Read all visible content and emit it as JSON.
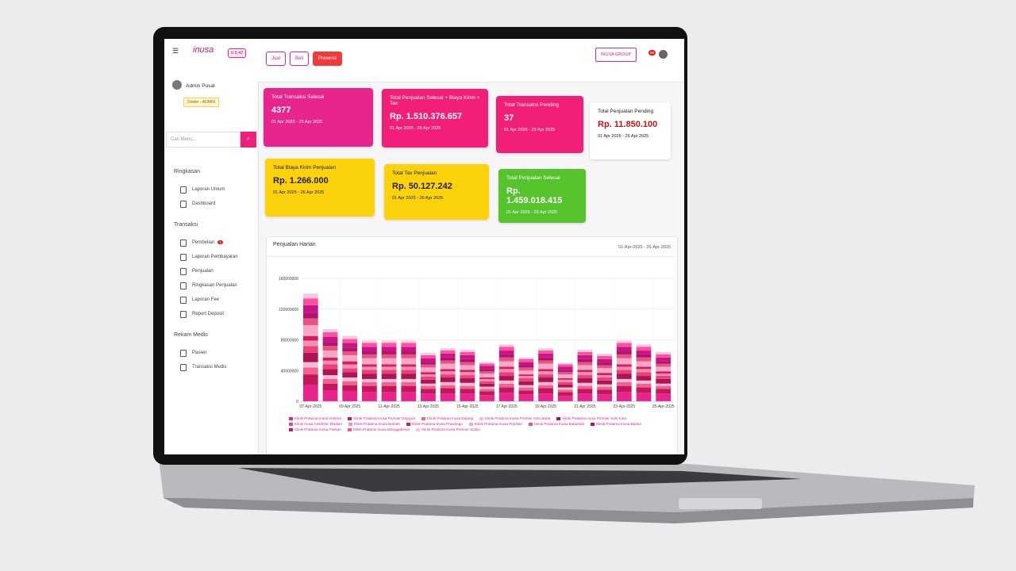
{
  "header": {
    "logo": "inusa",
    "version": "0.8.42",
    "buttons": [
      "Jual",
      "Beli",
      "Presensi"
    ],
    "brand": "INUSA GROUP",
    "notification": "99"
  },
  "sidebar": {
    "user": "Admin Pusat",
    "role": "Dokter - ADMIN",
    "search": "Cari Menu...",
    "sections": [
      {
        "title": "Ringkasan",
        "items": [
          {
            "label": "Laporan Umum"
          },
          {
            "label": "Dashboard"
          }
        ]
      },
      {
        "title": "Transaksi",
        "items": [
          {
            "label": "Pembelian",
            "badge": "1"
          },
          {
            "label": "Laporan Pembayaran"
          },
          {
            "label": "Penjualan"
          },
          {
            "label": "Ringkasan Penjualan"
          },
          {
            "label": "Laporan Fee"
          },
          {
            "label": "Report Deposit"
          }
        ]
      },
      {
        "title": "Rekam Medis",
        "items": [
          {
            "label": "Pasien"
          },
          {
            "label": "Transaksi Medis"
          }
        ]
      }
    ]
  },
  "cards": [
    {
      "title": "Total Transaksi Selesai",
      "value": "4377",
      "period": "01 Apr 2025 - 25 Apr 2025",
      "color": "#e8248f"
    },
    {
      "title": "Total Penjualan Selesai + Biaya Kirim + Tax",
      "value": "Rp. 1.510.376.657",
      "period": "01 Apr 2025 - 26 Apr 2025",
      "color": "#f21f78"
    },
    {
      "title": "Total Transaksi Pending",
      "value": "37",
      "period": "01 Apr 2025 - 25 Apr 2025",
      "color": "#f21f78"
    },
    {
      "title": "Total Penjualan Pending",
      "value": "Rp. 11.850.100",
      "period": "01 Apr 2025 - 26 Apr 2025",
      "color": "#ffffff"
    },
    {
      "title": "Total Biaya Kirim Penjualan",
      "value": "Rp. 1.266.000",
      "period": "01 Apr 2025 - 26 Apr 2025",
      "color": "#fbd20c"
    },
    {
      "title": "Total Tax Penjualan",
      "value": "Rp. 50.127.242",
      "period": "01 Apr 2025 - 26 Apr 2025",
      "color": "#fbd20c"
    },
    {
      "title": "Total Penjualan Selesai",
      "value": "Rp. 1.459.018.415",
      "period": "01 Apr 2025 - 26 Apr 2025",
      "color": "#56c22c"
    }
  ],
  "chart_data": {
    "type": "stacked_bar",
    "title": "Penjualan Harian",
    "subtitle": "01-Apr-2025 - 26-Apr-2025",
    "categories": [
      "07-Apr-2025",
      null,
      "09 Apr 2025",
      null,
      "11-Apr-2025",
      null,
      "13 Apr 2025",
      null,
      "15-Apr-2025",
      null,
      "17 Apr 2025",
      null,
      "19 Apr 2025",
      null,
      "21 Apr 2025",
      null,
      "23-Apr-2025",
      null,
      "25-Apr-2025"
    ],
    "ylim": [
      0,
      160000000
    ],
    "yticks": [
      0,
      40000000,
      80000000,
      120000000,
      160000000
    ],
    "grid": true,
    "series": [
      {
        "name": "Klinik Pratama Inusa Veteran",
        "color": "#e8248f",
        "values": [
          21000000,
          14000000,
          13000000,
          12000000,
          12000000,
          12000000,
          10000000,
          10000000,
          10000000,
          8000000,
          11000000,
          9000000,
          10000000,
          7000000,
          10000000,
          9000000,
          12000000,
          11000000,
          10000000
        ]
      },
      {
        "name": "Klinik Pratama Inusa Premier Gejayan",
        "color": "#c2185b",
        "values": [
          14000000,
          9000000,
          8000000,
          8000000,
          8000000,
          8000000,
          6000000,
          7000000,
          6000000,
          5000000,
          7000000,
          5000000,
          7000000,
          5000000,
          6000000,
          6000000,
          8000000,
          7000000,
          6000000
        ]
      },
      {
        "name": "Klinik Pratama Inusa Dalang",
        "color": "#f06292",
        "values": [
          9000000,
          6000000,
          5000000,
          5000000,
          5000000,
          5000000,
          4000000,
          4000000,
          4000000,
          3000000,
          5000000,
          4000000,
          4000000,
          3000000,
          4000000,
          4000000,
          5000000,
          5000000,
          4000000
        ]
      },
      {
        "name": "Klinik Pratama Inusa Premier Solo Barat",
        "color": "#f8bbd0",
        "values": [
          7000000,
          5000000,
          5000000,
          4000000,
          4000000,
          4000000,
          3000000,
          4000000,
          4000000,
          3000000,
          4000000,
          3000000,
          4000000,
          3000000,
          4000000,
          3000000,
          4000000,
          4000000,
          3000000
        ]
      },
      {
        "name": "Klinik Pratama Inusa Premier Solo Kota",
        "color": "#ad1457",
        "values": [
          12000000,
          8000000,
          7000000,
          7000000,
          7000000,
          7000000,
          5000000,
          6000000,
          6000000,
          4000000,
          6000000,
          5000000,
          6000000,
          4000000,
          6000000,
          5000000,
          7000000,
          6000000,
          6000000
        ]
      },
      {
        "name": "Klinik Inusa Aesthetic Madiun",
        "color": "#ec407a",
        "values": [
          9000000,
          6000000,
          5000000,
          5000000,
          5000000,
          5000000,
          4000000,
          4000000,
          4000000,
          3000000,
          5000000,
          4000000,
          4000000,
          3000000,
          4000000,
          4000000,
          5000000,
          5000000,
          4000000
        ]
      },
      {
        "name": "Klinik Pratama Inusa Bantah",
        "color": "#f48fb1",
        "values": [
          7000000,
          5000000,
          5000000,
          4000000,
          4000000,
          4000000,
          3000000,
          4000000,
          4000000,
          3000000,
          4000000,
          3000000,
          4000000,
          3000000,
          4000000,
          3000000,
          4000000,
          4000000,
          3000000
        ]
      },
      {
        "name": "Klinik Pratama Inusa Prawirogo",
        "color": "#d81b60",
        "values": [
          6000000,
          4000000,
          4000000,
          3000000,
          3000000,
          3000000,
          3000000,
          3000000,
          3000000,
          2000000,
          3000000,
          2000000,
          3000000,
          2000000,
          3000000,
          3000000,
          3000000,
          3000000,
          3000000
        ]
      },
      {
        "name": "Klinik Pratama Inusa Pepelan",
        "color": "#f7a8c8",
        "values": [
          14000000,
          9000000,
          8000000,
          8000000,
          8000000,
          8000000,
          6000000,
          7000000,
          6000000,
          5000000,
          7000000,
          5000000,
          7000000,
          5000000,
          6000000,
          6000000,
          8000000,
          7000000,
          6000000
        ]
      },
      {
        "name": "Klinik Pratama Inusa Babarsari",
        "color": "#e75480",
        "values": [
          9000000,
          6000000,
          5000000,
          5000000,
          5000000,
          5000000,
          4000000,
          4000000,
          4000000,
          3000000,
          5000000,
          4000000,
          4000000,
          3000000,
          4000000,
          4000000,
          5000000,
          5000000,
          4000000
        ]
      },
      {
        "name": "Klinik Pratama Inusa Bantul",
        "color": "#b0126f",
        "values": [
          7000000,
          5000000,
          5000000,
          4000000,
          4000000,
          4000000,
          3000000,
          4000000,
          4000000,
          3000000,
          4000000,
          3000000,
          4000000,
          3000000,
          4000000,
          3000000,
          4000000,
          4000000,
          3000000
        ]
      },
      {
        "name": "Klinik Pratama Inusa Paskan",
        "color": "#c71585",
        "values": [
          10000000,
          7000000,
          6000000,
          6000000,
          6000000,
          6000000,
          5000000,
          5000000,
          5000000,
          4000000,
          5000000,
          4000000,
          5000000,
          4000000,
          5000000,
          5000000,
          6000000,
          5000000,
          5000000
        ]
      },
      {
        "name": "Klinik Pratama Inusa Manggabesar",
        "color": "#ff4fa3",
        "values": [
          9000000,
          6000000,
          5000000,
          5000000,
          5000000,
          5000000,
          4000000,
          4000000,
          4000000,
          3000000,
          5000000,
          4000000,
          4000000,
          3000000,
          4000000,
          4000000,
          5000000,
          5000000,
          4000000
        ]
      },
      {
        "name": "Klinik Pratama Inusa Premier Sultan",
        "color": "#f9c8dc",
        "values": [
          6000000,
          4000000,
          4000000,
          3000000,
          3000000,
          3000000,
          3000000,
          3000000,
          3000000,
          2000000,
          3000000,
          2000000,
          3000000,
          2000000,
          3000000,
          3000000,
          3000000,
          3000000,
          3000000
        ]
      }
    ]
  }
}
